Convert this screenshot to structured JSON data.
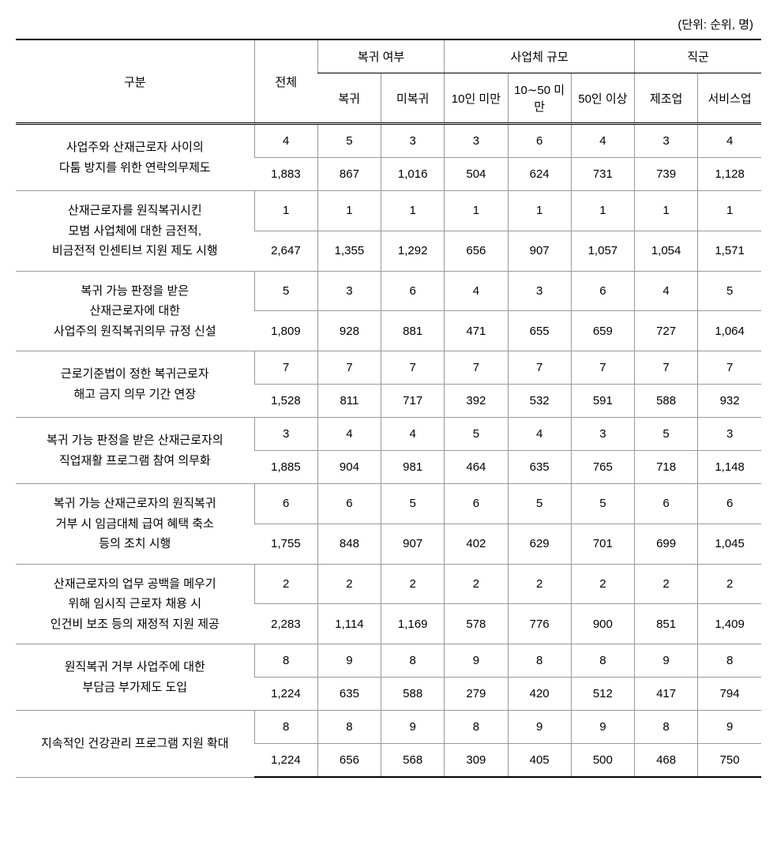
{
  "unit_label": "(단위: 순위, 명)",
  "headers": {
    "category": "구분",
    "total": "전체",
    "return_group": "복귀 여부",
    "return_yes": "복귀",
    "return_no": "미복귀",
    "size_group": "사업체 규모",
    "size_10": "10인 미만",
    "size_10_50": "10∼50 미만",
    "size_50": "50인 이상",
    "job_group": "직군",
    "job_mfg": "제조업",
    "job_svc": "서비스업"
  },
  "rows": [
    {
      "label": "사업주와 산재근로자 사이의\n다툼 방지를 위한 연락의무제도",
      "rank": [
        "4",
        "5",
        "3",
        "3",
        "6",
        "4",
        "3",
        "4"
      ],
      "count": [
        "1,883",
        "867",
        "1,016",
        "504",
        "624",
        "731",
        "739",
        "1,128"
      ]
    },
    {
      "label": "산재근로자를 원직복귀시킨\n모범 사업체에 대한 금전적,\n비금전적 인센티브 지원 제도 시행",
      "rank": [
        "1",
        "1",
        "1",
        "1",
        "1",
        "1",
        "1",
        "1"
      ],
      "count": [
        "2,647",
        "1,355",
        "1,292",
        "656",
        "907",
        "1,057",
        "1,054",
        "1,571"
      ]
    },
    {
      "label": "복귀 가능 판정을 받은\n산재근로자에 대한\n사업주의 원직복귀의무 규정 신설",
      "rank": [
        "5",
        "3",
        "6",
        "4",
        "3",
        "6",
        "4",
        "5"
      ],
      "count": [
        "1,809",
        "928",
        "881",
        "471",
        "655",
        "659",
        "727",
        "1,064"
      ]
    },
    {
      "label": "근로기준법이 정한 복귀근로자\n해고 금지 의무 기간 연장",
      "rank": [
        "7",
        "7",
        "7",
        "7",
        "7",
        "7",
        "7",
        "7"
      ],
      "count": [
        "1,528",
        "811",
        "717",
        "392",
        "532",
        "591",
        "588",
        "932"
      ]
    },
    {
      "label": "복귀 가능 판정을 받은 산재근로자의\n직업재활 프로그램 참여 의무화",
      "rank": [
        "3",
        "4",
        "4",
        "5",
        "4",
        "3",
        "5",
        "3"
      ],
      "count": [
        "1,885",
        "904",
        "981",
        "464",
        "635",
        "765",
        "718",
        "1,148"
      ]
    },
    {
      "label": "복귀 가능 산재근로자의 원직복귀\n거부 시 임금대체 급여 혜택 축소\n등의 조치 시행",
      "rank": [
        "6",
        "6",
        "5",
        "6",
        "5",
        "5",
        "6",
        "6"
      ],
      "count": [
        "1,755",
        "848",
        "907",
        "402",
        "629",
        "701",
        "699",
        "1,045"
      ]
    },
    {
      "label": "산재근로자의 업무 공백을 메우기\n위해 임시직 근로자 채용 시\n인건비 보조 등의 재정적 지원 제공",
      "rank": [
        "2",
        "2",
        "2",
        "2",
        "2",
        "2",
        "2",
        "2"
      ],
      "count": [
        "2,283",
        "1,114",
        "1,169",
        "578",
        "776",
        "900",
        "851",
        "1,409"
      ]
    },
    {
      "label": "원직복귀 거부 사업주에 대한\n부담금 부가제도 도입",
      "rank": [
        "8",
        "9",
        "8",
        "9",
        "8",
        "8",
        "9",
        "8"
      ],
      "count": [
        "1,224",
        "635",
        "588",
        "279",
        "420",
        "512",
        "417",
        "794"
      ]
    },
    {
      "label": "지속적인 건강관리 프로그램 지원 확대",
      "rank": [
        "8",
        "8",
        "9",
        "8",
        "9",
        "9",
        "8",
        "9"
      ],
      "count": [
        "1,224",
        "656",
        "568",
        "309",
        "405",
        "500",
        "468",
        "750"
      ]
    }
  ]
}
